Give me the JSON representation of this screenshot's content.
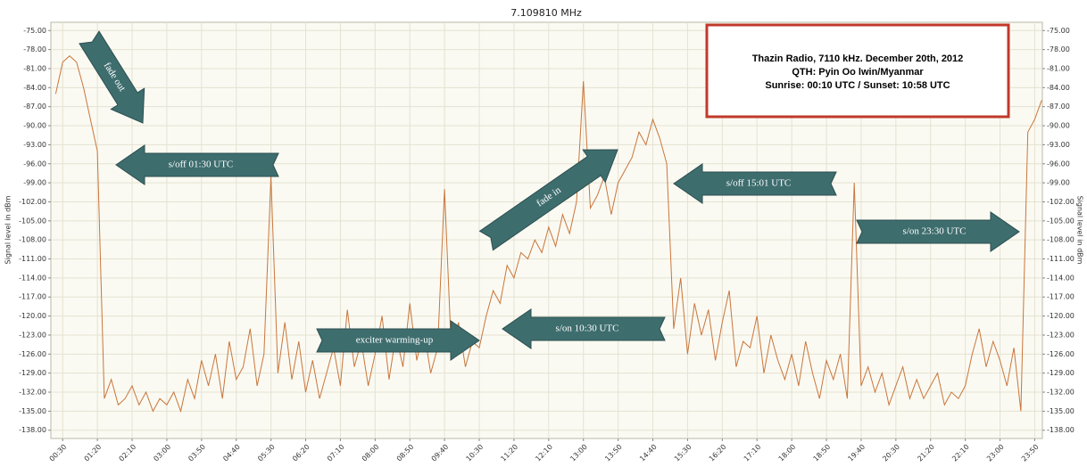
{
  "chart_data": {
    "type": "line",
    "title": "7.109810 MHz",
    "y_label": "Signal level in dBm",
    "y2_label": "Signal level in dBm",
    "note": [
      "Thazin Radio, 7110 kHz. December 20th, 2012",
      "QTH: Pyin Oo lwin/Myanmar",
      "Sunrise: 00:10 UTC / Sunset: 10:58 UTC"
    ],
    "annotations": [
      "fade out",
      "s/off 01:30 UTC",
      "fade in",
      "s/off 15:01 UTC",
      "s/on 23:30 UTC",
      "exciter warming-up",
      "s/on 10:30 UTC"
    ],
    "grid": true,
    "xlim": [
      13,
      1441
    ],
    "ylim": [
      -139.3,
      -73.7
    ],
    "xticks": [
      {
        "value": 30,
        "label": "00:30"
      },
      {
        "value": 80,
        "label": "01:20"
      },
      {
        "value": 130,
        "label": "02:10"
      },
      {
        "value": 180,
        "label": "03:00"
      },
      {
        "value": 230,
        "label": "03:50"
      },
      {
        "value": 280,
        "label": "04:40"
      },
      {
        "value": 330,
        "label": "05:30"
      },
      {
        "value": 380,
        "label": "06:20"
      },
      {
        "value": 430,
        "label": "07:10"
      },
      {
        "value": 480,
        "label": "08:00"
      },
      {
        "value": 530,
        "label": "08:50"
      },
      {
        "value": 580,
        "label": "09:40"
      },
      {
        "value": 630,
        "label": "10:30"
      },
      {
        "value": 680,
        "label": "11:20"
      },
      {
        "value": 730,
        "label": "12:10"
      },
      {
        "value": 780,
        "label": "13:00"
      },
      {
        "value": 830,
        "label": "13:50"
      },
      {
        "value": 880,
        "label": "14:40"
      },
      {
        "value": 930,
        "label": "15:30"
      },
      {
        "value": 980,
        "label": "16:20"
      },
      {
        "value": 1030,
        "label": "17:10"
      },
      {
        "value": 1080,
        "label": "18:00"
      },
      {
        "value": 1130,
        "label": "18:50"
      },
      {
        "value": 1180,
        "label": "19:40"
      },
      {
        "value": 1230,
        "label": "20:30"
      },
      {
        "value": 1280,
        "label": "21:20"
      },
      {
        "value": 1330,
        "label": "22:10"
      },
      {
        "value": 1380,
        "label": "23:00"
      },
      {
        "value": 1430,
        "label": "23:50"
      }
    ],
    "yticks": [
      {
        "value": -75,
        "label": "-75.00"
      },
      {
        "value": -78,
        "label": "-78.00"
      },
      {
        "value": -81,
        "label": "-81.00"
      },
      {
        "value": -84,
        "label": "-84.00"
      },
      {
        "value": -87,
        "label": "-87.00"
      },
      {
        "value": -90,
        "label": "-90.00"
      },
      {
        "value": -93,
        "label": "-93.00"
      },
      {
        "value": -96,
        "label": "-96.00"
      },
      {
        "value": -99,
        "label": "-99.00"
      },
      {
        "value": -102,
        "label": "-102.00"
      },
      {
        "value": -105,
        "label": "-105.00"
      },
      {
        "value": -108,
        "label": "-108.00"
      },
      {
        "value": -111,
        "label": "-111.00"
      },
      {
        "value": -114,
        "label": "-114.00"
      },
      {
        "value": -117,
        "label": "-117.00"
      },
      {
        "value": -120,
        "label": "-120.00"
      },
      {
        "value": -123,
        "label": "-123.00"
      },
      {
        "value": -126,
        "label": "-126.00"
      },
      {
        "value": -129,
        "label": "-129.00"
      },
      {
        "value": -132,
        "label": "-132.00"
      },
      {
        "value": -135,
        "label": "-135.00"
      },
      {
        "value": -138,
        "label": "-138.00"
      }
    ],
    "x": [
      20,
      30,
      40,
      50,
      60,
      70,
      80,
      90,
      100,
      110,
      120,
      130,
      140,
      150,
      160,
      170,
      180,
      190,
      200,
      210,
      220,
      230,
      240,
      250,
      260,
      270,
      280,
      290,
      300,
      310,
      320,
      330,
      340,
      350,
      360,
      370,
      380,
      390,
      400,
      410,
      420,
      430,
      440,
      450,
      460,
      470,
      480,
      490,
      500,
      510,
      520,
      530,
      540,
      550,
      560,
      570,
      580,
      590,
      600,
      610,
      620,
      630,
      640,
      650,
      660,
      670,
      680,
      690,
      700,
      710,
      720,
      730,
      740,
      750,
      760,
      770,
      780,
      790,
      800,
      810,
      820,
      830,
      840,
      850,
      860,
      870,
      880,
      890,
      900,
      910,
      920,
      930,
      940,
      950,
      960,
      970,
      980,
      990,
      1000,
      1010,
      1020,
      1030,
      1040,
      1050,
      1060,
      1070,
      1080,
      1090,
      1100,
      1110,
      1120,
      1130,
      1140,
      1150,
      1160,
      1170,
      1180,
      1190,
      1200,
      1210,
      1220,
      1230,
      1240,
      1250,
      1260,
      1270,
      1280,
      1290,
      1300,
      1310,
      1320,
      1330,
      1340,
      1350,
      1360,
      1370,
      1380,
      1390,
      1400,
      1410,
      1420,
      1430,
      1440
    ],
    "series": [
      {
        "name": "7.109810 MHz",
        "color": "#c8763c",
        "values": [
          -85,
          -80,
          -79,
          -80,
          -84,
          -89,
          -94,
          -133,
          -130,
          -134,
          -133,
          -131,
          -134,
          -132,
          -135,
          -133,
          -134,
          -132,
          -135,
          -130,
          -133,
          -127,
          -131,
          -126,
          -133,
          -124,
          -130,
          -128,
          -122,
          -131,
          -126,
          -98,
          -129,
          -121,
          -130,
          -124,
          -132,
          -127,
          -133,
          -129,
          -125,
          -131,
          -119,
          -128,
          -124,
          -131,
          -126,
          -120,
          -130,
          -123,
          -128,
          -118,
          -127,
          -122,
          -129,
          -125,
          -100,
          -126,
          -121,
          -128,
          -124,
          -125,
          -120,
          -116,
          -118,
          -112,
          -114,
          -110,
          -111,
          -108,
          -110,
          -106,
          -109,
          -104,
          -107,
          -102,
          -83,
          -103,
          -101,
          -98,
          -104,
          -99,
          -97,
          -95,
          -91,
          -93,
          -89,
          -92,
          -96,
          -122,
          -114,
          -126,
          -118,
          -123,
          -119,
          -127,
          -121,
          -116,
          -128,
          -124,
          -125,
          -120,
          -129,
          -123,
          -127,
          -130,
          -126,
          -131,
          -124,
          -129,
          -133,
          -127,
          -130,
          -126,
          -133,
          -99,
          -131,
          -128,
          -132,
          -129,
          -134,
          -131,
          -128,
          -133,
          -130,
          -133,
          -131,
          -129,
          -134,
          -132,
          -133,
          -131,
          -126,
          -122,
          -128,
          -124,
          -127,
          -131,
          -125,
          -135,
          -91,
          -89,
          -86
        ]
      }
    ]
  }
}
